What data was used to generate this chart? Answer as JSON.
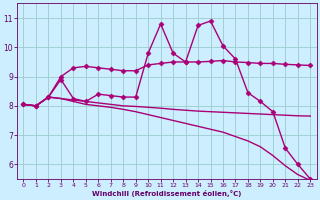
{
  "bg_color": "#cceeff",
  "grid_color": "#99cccc",
  "line_color": "#aa0077",
  "marker_color": "#aa0077",
  "xlabel": "Windchill (Refroidissement éolien,°C)",
  "xlabel_color": "#660066",
  "tick_color": "#660066",
  "xlim": [
    -0.5,
    23.5
  ],
  "ylim": [
    5.5,
    11.5
  ],
  "yticks": [
    6,
    7,
    8,
    9,
    10,
    11
  ],
  "xticks": [
    0,
    1,
    2,
    3,
    4,
    5,
    6,
    7,
    8,
    9,
    10,
    11,
    12,
    13,
    14,
    15,
    16,
    17,
    18,
    19,
    20,
    21,
    22,
    23
  ],
  "series": [
    {
      "x": [
        0,
        1,
        2,
        3,
        4,
        5,
        6,
        7,
        8,
        9,
        10,
        11,
        12,
        13,
        14,
        15,
        16,
        17,
        18,
        19,
        20,
        21,
        22,
        23
      ],
      "y": [
        8.05,
        8.0,
        8.3,
        8.25,
        8.2,
        8.15,
        8.1,
        8.05,
        8.0,
        7.98,
        7.95,
        7.92,
        7.88,
        7.85,
        7.82,
        7.8,
        7.78,
        7.76,
        7.74,
        7.72,
        7.7,
        7.68,
        7.66,
        7.65
      ],
      "marker": null,
      "linewidth": 1.0
    },
    {
      "x": [
        0,
        1,
        2,
        3,
        4,
        5,
        6,
        7,
        8,
        9,
        10,
        11,
        12,
        13,
        14,
        15,
        16,
        17,
        18,
        19,
        20,
        21,
        22,
        23
      ],
      "y": [
        8.05,
        8.0,
        8.3,
        9.0,
        9.3,
        9.35,
        9.3,
        9.25,
        9.2,
        9.2,
        9.4,
        9.45,
        9.5,
        9.5,
        9.5,
        9.52,
        9.55,
        9.5,
        9.48,
        9.45,
        9.45,
        9.42,
        9.4,
        9.38
      ],
      "marker": "D",
      "linewidth": 1.0
    },
    {
      "x": [
        0,
        1,
        2,
        3,
        4,
        5,
        6,
        7,
        8,
        9,
        10,
        11,
        12,
        13,
        14,
        15,
        16,
        17,
        18,
        19,
        20,
        21,
        22,
        23
      ],
      "y": [
        8.05,
        8.0,
        8.3,
        8.9,
        8.25,
        8.15,
        8.4,
        8.35,
        8.3,
        8.3,
        9.8,
        10.8,
        9.8,
        9.5,
        10.75,
        10.9,
        10.05,
        9.6,
        8.45,
        8.15,
        7.8,
        6.55,
        6.0,
        5.5
      ],
      "marker": "D",
      "linewidth": 1.0
    },
    {
      "x": [
        0,
        1,
        2,
        3,
        4,
        5,
        6,
        7,
        8,
        9,
        10,
        11,
        12,
        13,
        14,
        15,
        16,
        17,
        18,
        19,
        20,
        21,
        22,
        23
      ],
      "y": [
        8.05,
        8.0,
        8.3,
        8.25,
        8.15,
        8.05,
        8.0,
        7.95,
        7.88,
        7.8,
        7.7,
        7.6,
        7.5,
        7.4,
        7.3,
        7.2,
        7.1,
        6.95,
        6.8,
        6.6,
        6.3,
        5.95,
        5.65,
        5.45
      ],
      "marker": null,
      "linewidth": 1.0
    }
  ]
}
